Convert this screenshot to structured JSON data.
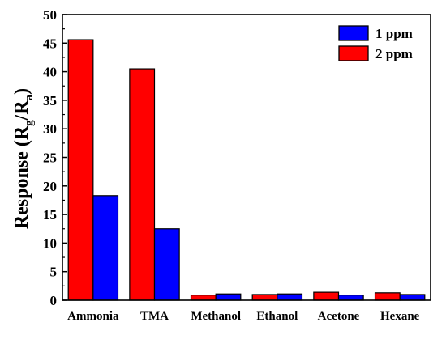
{
  "colors": {
    "series_2ppm": "#ff0000",
    "series_1ppm": "#0000ff",
    "axis": "#000000",
    "bar_stroke": "#000000",
    "background": "#ffffff"
  },
  "chart_data": {
    "type": "bar",
    "title": "",
    "xlabel": "",
    "ylabel": "Response (Rg/Ra)",
    "ylabel_parts": {
      "main": "Response (R",
      "sub1": "g",
      "mid": "/R",
      "sub2": "a",
      "end": ")"
    },
    "ylim": [
      0,
      50
    ],
    "yticks": [
      "0",
      "5",
      "10",
      "15",
      "20",
      "25",
      "30",
      "35",
      "40",
      "45",
      "50"
    ],
    "grid": false,
    "legend_position": "top-right",
    "categories": [
      "Ammonia",
      "TMA",
      "Methanol",
      "Ethanol",
      "Acetone",
      "Hexane"
    ],
    "series": [
      {
        "name": "2 ppm",
        "color": "#ff0000",
        "values": [
          45.6,
          40.5,
          0.9,
          1.0,
          1.4,
          1.3
        ]
      },
      {
        "name": "1 ppm",
        "color": "#0000ff",
        "values": [
          18.3,
          12.5,
          1.1,
          1.1,
          0.9,
          1.0
        ]
      }
    ],
    "legend_order": [
      "1 ppm",
      "2 ppm"
    ]
  }
}
